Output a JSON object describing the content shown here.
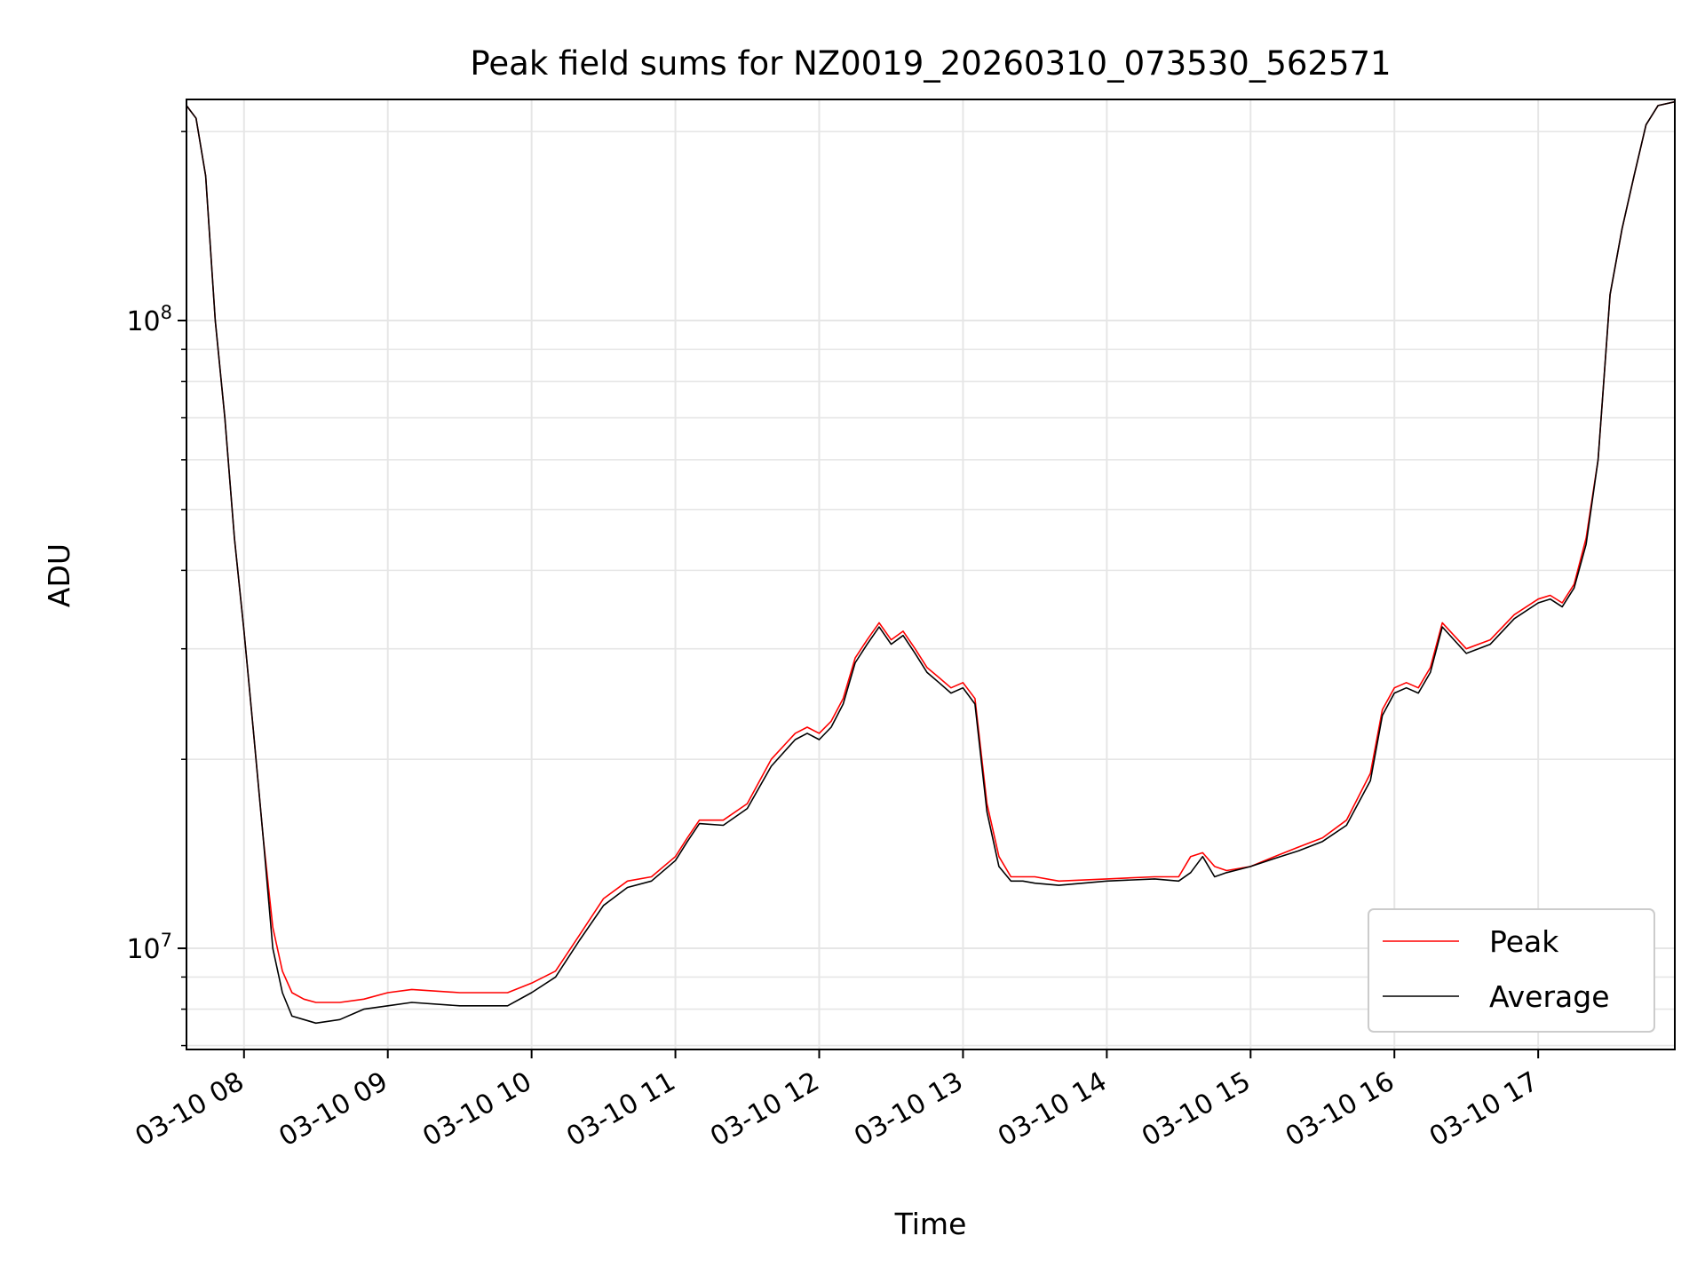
{
  "chart_data": {
    "type": "line",
    "title": "Peak field sums for NZ0019_20260310_073530_562571",
    "xlabel": "Time",
    "ylabel": "ADU",
    "xscale": "time",
    "yscale": "log",
    "xlim": [
      "2026-03-10 07:36",
      "2026-03-10 17:57"
    ],
    "ylim": [
      6900000,
      225000000
    ],
    "grid": true,
    "legend_position": "lower-right",
    "x_ticks": [
      {
        "t": "2026-03-10 08:00",
        "label": "03-10 08"
      },
      {
        "t": "2026-03-10 09:00",
        "label": "03-10 09"
      },
      {
        "t": "2026-03-10 10:00",
        "label": "03-10 10"
      },
      {
        "t": "2026-03-10 11:00",
        "label": "03-10 11"
      },
      {
        "t": "2026-03-10 12:00",
        "label": "03-10 12"
      },
      {
        "t": "2026-03-10 13:00",
        "label": "03-10 13"
      },
      {
        "t": "2026-03-10 14:00",
        "label": "03-10 14"
      },
      {
        "t": "2026-03-10 15:00",
        "label": "03-10 15"
      },
      {
        "t": "2026-03-10 16:00",
        "label": "03-10 16"
      },
      {
        "t": "2026-03-10 17:00",
        "label": "03-10 17"
      }
    ],
    "y_ticks": [
      {
        "value": 10000000,
        "base": "10",
        "exp": "7"
      },
      {
        "value": 100000000,
        "base": "10",
        "exp": "8"
      }
    ],
    "series": [
      {
        "name": "Peak",
        "color": "#ff0000",
        "x": [
          "2026-03-10 07:36",
          "2026-03-10 07:40",
          "2026-03-10 07:44",
          "2026-03-10 07:48",
          "2026-03-10 07:52",
          "2026-03-10 07:56",
          "2026-03-10 08:00",
          "2026-03-10 08:04",
          "2026-03-10 08:08",
          "2026-03-10 08:12",
          "2026-03-10 08:16",
          "2026-03-10 08:20",
          "2026-03-10 08:25",
          "2026-03-10 08:30",
          "2026-03-10 08:40",
          "2026-03-10 08:50",
          "2026-03-10 09:00",
          "2026-03-10 09:10",
          "2026-03-10 09:30",
          "2026-03-10 09:50",
          "2026-03-10 10:00",
          "2026-03-10 10:10",
          "2026-03-10 10:20",
          "2026-03-10 10:30",
          "2026-03-10 10:40",
          "2026-03-10 10:50",
          "2026-03-10 11:00",
          "2026-03-10 11:05",
          "2026-03-10 11:10",
          "2026-03-10 11:20",
          "2026-03-10 11:30",
          "2026-03-10 11:40",
          "2026-03-10 11:50",
          "2026-03-10 11:55",
          "2026-03-10 12:00",
          "2026-03-10 12:05",
          "2026-03-10 12:10",
          "2026-03-10 12:15",
          "2026-03-10 12:20",
          "2026-03-10 12:25",
          "2026-03-10 12:30",
          "2026-03-10 12:35",
          "2026-03-10 12:40",
          "2026-03-10 12:45",
          "2026-03-10 12:50",
          "2026-03-10 12:55",
          "2026-03-10 13:00",
          "2026-03-10 13:05",
          "2026-03-10 13:10",
          "2026-03-10 13:15",
          "2026-03-10 13:20",
          "2026-03-10 13:25",
          "2026-03-10 13:30",
          "2026-03-10 13:40",
          "2026-03-10 14:00",
          "2026-03-10 14:20",
          "2026-03-10 14:30",
          "2026-03-10 14:35",
          "2026-03-10 14:40",
          "2026-03-10 14:45",
          "2026-03-10 14:50",
          "2026-03-10 15:00",
          "2026-03-10 15:10",
          "2026-03-10 15:20",
          "2026-03-10 15:30",
          "2026-03-10 15:40",
          "2026-03-10 15:50",
          "2026-03-10 15:55",
          "2026-03-10 16:00",
          "2026-03-10 16:05",
          "2026-03-10 16:10",
          "2026-03-10 16:15",
          "2026-03-10 16:20",
          "2026-03-10 16:30",
          "2026-03-10 16:40",
          "2026-03-10 16:50",
          "2026-03-10 17:00",
          "2026-03-10 17:05",
          "2026-03-10 17:10",
          "2026-03-10 17:15",
          "2026-03-10 17:20",
          "2026-03-10 17:25",
          "2026-03-10 17:30",
          "2026-03-10 17:35",
          "2026-03-10 17:40",
          "2026-03-10 17:45",
          "2026-03-10 17:50",
          "2026-03-10 17:57"
        ],
        "values": [
          220000000,
          210000000,
          170000000,
          100000000,
          70000000,
          45000000,
          32000000,
          22000000,
          15000000,
          10800000,
          9200000,
          8500000,
          8300000,
          8200000,
          8200000,
          8300000,
          8500000,
          8600000,
          8500000,
          8500000,
          8800000,
          9200000,
          10500000,
          12000000,
          12800000,
          13000000,
          14000000,
          15000000,
          16000000,
          16000000,
          17000000,
          20000000,
          22000000,
          22500000,
          22000000,
          23000000,
          25000000,
          29000000,
          31000000,
          33000000,
          31000000,
          32000000,
          30000000,
          28000000,
          27000000,
          26000000,
          26500000,
          25000000,
          17000000,
          14000000,
          13000000,
          13000000,
          13000000,
          12800000,
          12900000,
          13000000,
          13000000,
          14000000,
          14200000,
          13500000,
          13300000,
          13500000,
          14000000,
          14500000,
          15000000,
          16000000,
          19000000,
          24000000,
          26000000,
          26500000,
          26000000,
          28000000,
          33000000,
          30000000,
          31000000,
          34000000,
          36000000,
          36500000,
          35500000,
          38000000,
          45000000,
          60000000,
          110000000,
          140000000,
          170000000,
          205000000,
          220000000,
          223000000
        ]
      },
      {
        "name": "Average",
        "color": "#000000",
        "x": [
          "2026-03-10 07:36",
          "2026-03-10 07:40",
          "2026-03-10 07:44",
          "2026-03-10 07:48",
          "2026-03-10 07:52",
          "2026-03-10 07:56",
          "2026-03-10 08:00",
          "2026-03-10 08:04",
          "2026-03-10 08:08",
          "2026-03-10 08:12",
          "2026-03-10 08:16",
          "2026-03-10 08:20",
          "2026-03-10 08:25",
          "2026-03-10 08:30",
          "2026-03-10 08:40",
          "2026-03-10 08:50",
          "2026-03-10 09:00",
          "2026-03-10 09:10",
          "2026-03-10 09:30",
          "2026-03-10 09:50",
          "2026-03-10 10:00",
          "2026-03-10 10:10",
          "2026-03-10 10:20",
          "2026-03-10 10:30",
          "2026-03-10 10:40",
          "2026-03-10 10:50",
          "2026-03-10 11:00",
          "2026-03-10 11:05",
          "2026-03-10 11:10",
          "2026-03-10 11:20",
          "2026-03-10 11:30",
          "2026-03-10 11:40",
          "2026-03-10 11:50",
          "2026-03-10 11:55",
          "2026-03-10 12:00",
          "2026-03-10 12:05",
          "2026-03-10 12:10",
          "2026-03-10 12:15",
          "2026-03-10 12:20",
          "2026-03-10 12:25",
          "2026-03-10 12:30",
          "2026-03-10 12:35",
          "2026-03-10 12:40",
          "2026-03-10 12:45",
          "2026-03-10 12:50",
          "2026-03-10 12:55",
          "2026-03-10 13:00",
          "2026-03-10 13:05",
          "2026-03-10 13:10",
          "2026-03-10 13:15",
          "2026-03-10 13:20",
          "2026-03-10 13:25",
          "2026-03-10 13:30",
          "2026-03-10 13:40",
          "2026-03-10 14:00",
          "2026-03-10 14:20",
          "2026-03-10 14:30",
          "2026-03-10 14:35",
          "2026-03-10 14:40",
          "2026-03-10 14:45",
          "2026-03-10 14:50",
          "2026-03-10 15:00",
          "2026-03-10 15:10",
          "2026-03-10 15:20",
          "2026-03-10 15:30",
          "2026-03-10 15:40",
          "2026-03-10 15:50",
          "2026-03-10 15:55",
          "2026-03-10 16:00",
          "2026-03-10 16:05",
          "2026-03-10 16:10",
          "2026-03-10 16:15",
          "2026-03-10 16:20",
          "2026-03-10 16:30",
          "2026-03-10 16:40",
          "2026-03-10 16:50",
          "2026-03-10 17:00",
          "2026-03-10 17:05",
          "2026-03-10 17:10",
          "2026-03-10 17:15",
          "2026-03-10 17:20",
          "2026-03-10 17:25",
          "2026-03-10 17:30",
          "2026-03-10 17:35",
          "2026-03-10 17:40",
          "2026-03-10 17:45",
          "2026-03-10 17:50",
          "2026-03-10 17:57"
        ],
        "values": [
          220000000,
          210000000,
          170000000,
          100000000,
          70000000,
          45000000,
          32000000,
          22000000,
          15000000,
          10000000,
          8500000,
          7800000,
          7700000,
          7600000,
          7700000,
          8000000,
          8100000,
          8200000,
          8100000,
          8100000,
          8500000,
          9000000,
          10300000,
          11700000,
          12500000,
          12800000,
          13800000,
          14800000,
          15800000,
          15700000,
          16700000,
          19500000,
          21500000,
          22000000,
          21500000,
          22500000,
          24500000,
          28500000,
          30500000,
          32500000,
          30500000,
          31500000,
          29500000,
          27500000,
          26500000,
          25500000,
          26000000,
          24500000,
          16500000,
          13500000,
          12800000,
          12800000,
          12700000,
          12600000,
          12800000,
          12900000,
          12800000,
          13200000,
          14000000,
          13000000,
          13200000,
          13500000,
          13900000,
          14300000,
          14800000,
          15700000,
          18500000,
          23500000,
          25500000,
          26000000,
          25500000,
          27500000,
          32500000,
          29500000,
          30500000,
          33500000,
          35500000,
          36000000,
          35000000,
          37500000,
          44000000,
          60000000,
          110000000,
          140000000,
          170000000,
          205000000,
          220000000,
          223000000
        ]
      }
    ]
  }
}
